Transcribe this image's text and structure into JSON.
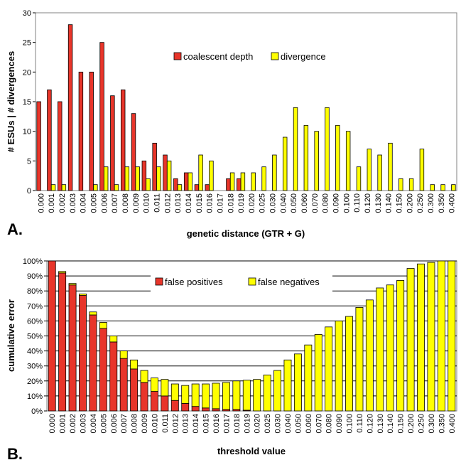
{
  "colors": {
    "red": "#e8352a",
    "yellow": "#ffff00",
    "outline": "#000000",
    "gridline": "#000000"
  },
  "chart_data": [
    {
      "panel_label": "A.",
      "type": "bar",
      "xlabel": "genetic distance (GTR + G)",
      "ylabel": "# ESUs | # divergences",
      "ylim": [
        0,
        30
      ],
      "yticks": [
        "0",
        "5",
        "10",
        "15",
        "20",
        "25",
        "30"
      ],
      "categories": [
        "0.000",
        "0.001",
        "0.002",
        "0.003",
        "0.004",
        "0.005",
        "0.006",
        "0.007",
        "0.008",
        "0.009",
        "0.010",
        "0.011",
        "0.012",
        "0.013",
        "0.014",
        "0.015",
        "0.016",
        "0.017",
        "0.018",
        "0.019",
        "0.020",
        "0.025",
        "0.030",
        "0.040",
        "0.050",
        "0.060",
        "0.070",
        "0.080",
        "0.090",
        "0.100",
        "0.110",
        "0.120",
        "0.130",
        "0.140",
        "0.150",
        "0.200",
        "0.250",
        "0.300",
        "0.350",
        "0.400"
      ],
      "legend_position": "top-center",
      "series": [
        {
          "name": "coalescent depth",
          "color": "#e8352a",
          "values": [
            15,
            17,
            15,
            28,
            20,
            20,
            25,
            16,
            17,
            13,
            5,
            8,
            6,
            2,
            3,
            1,
            1,
            0,
            2,
            2,
            0,
            0,
            0,
            0,
            0,
            0,
            0,
            0,
            0,
            0,
            0,
            0,
            0,
            0,
            0,
            0,
            0,
            0,
            0,
            0
          ]
        },
        {
          "name": "divergence",
          "color": "#ffff00",
          "values": [
            0,
            1,
            1,
            0,
            0,
            1,
            4,
            1,
            4,
            4,
            2,
            4,
            5,
            1,
            3,
            6,
            5,
            0,
            3,
            3,
            3,
            4,
            6,
            9,
            14,
            11,
            10,
            14,
            11,
            10,
            4,
            7,
            6,
            8,
            2,
            2,
            7,
            1,
            1,
            1
          ]
        }
      ]
    },
    {
      "panel_label": "B.",
      "type": "bar",
      "stacked": true,
      "xlabel": "threshold value",
      "ylabel": "cumulative error",
      "ylim": [
        0,
        100
      ],
      "yticks": [
        "0%",
        "10%",
        "20%",
        "30%",
        "40%",
        "50%",
        "60%",
        "70%",
        "80%",
        "90%",
        "100%"
      ],
      "grid": true,
      "categories": [
        "0.000",
        "0.001",
        "0.002",
        "0.003",
        "0.004",
        "0.005",
        "0.006",
        "0.007",
        "0.008",
        "0.009",
        "0.010",
        "0.011",
        "0.012",
        "0.013",
        "0.014",
        "0.015",
        "0.016",
        "0.017",
        "0.018",
        "0.019",
        "0.020",
        "0.025",
        "0.030",
        "0.040",
        "0.050",
        "0.060",
        "0.070",
        "0.080",
        "0.090",
        "0.100",
        "0.110",
        "0.120",
        "0.130",
        "0.140",
        "0.150",
        "0.200",
        "0.250",
        "0.300",
        "0.350",
        "0.400"
      ],
      "legend_position": "top-center",
      "series": [
        {
          "name": "false positives",
          "color": "#e8352a",
          "values": [
            100,
            92,
            84,
            77,
            64,
            55,
            46,
            35,
            28,
            19,
            13,
            10,
            7,
            5,
            3,
            2,
            1.5,
            1,
            1,
            0.5,
            0,
            0,
            0,
            0,
            0,
            0,
            0,
            0,
            0,
            0,
            0,
            0,
            0,
            0,
            0,
            0,
            0,
            0,
            0,
            0
          ]
        },
        {
          "name": "false negatives",
          "color": "#ffff00",
          "values": [
            0,
            1,
            1,
            1,
            2,
            4,
            4,
            5,
            6,
            8,
            9,
            11,
            11,
            12,
            15,
            16,
            17,
            18,
            19,
            20,
            21,
            24,
            27,
            34,
            38,
            44,
            51,
            56,
            60,
            63,
            69,
            74,
            82,
            84,
            87,
            95,
            98,
            99,
            100,
            100
          ]
        }
      ]
    }
  ]
}
